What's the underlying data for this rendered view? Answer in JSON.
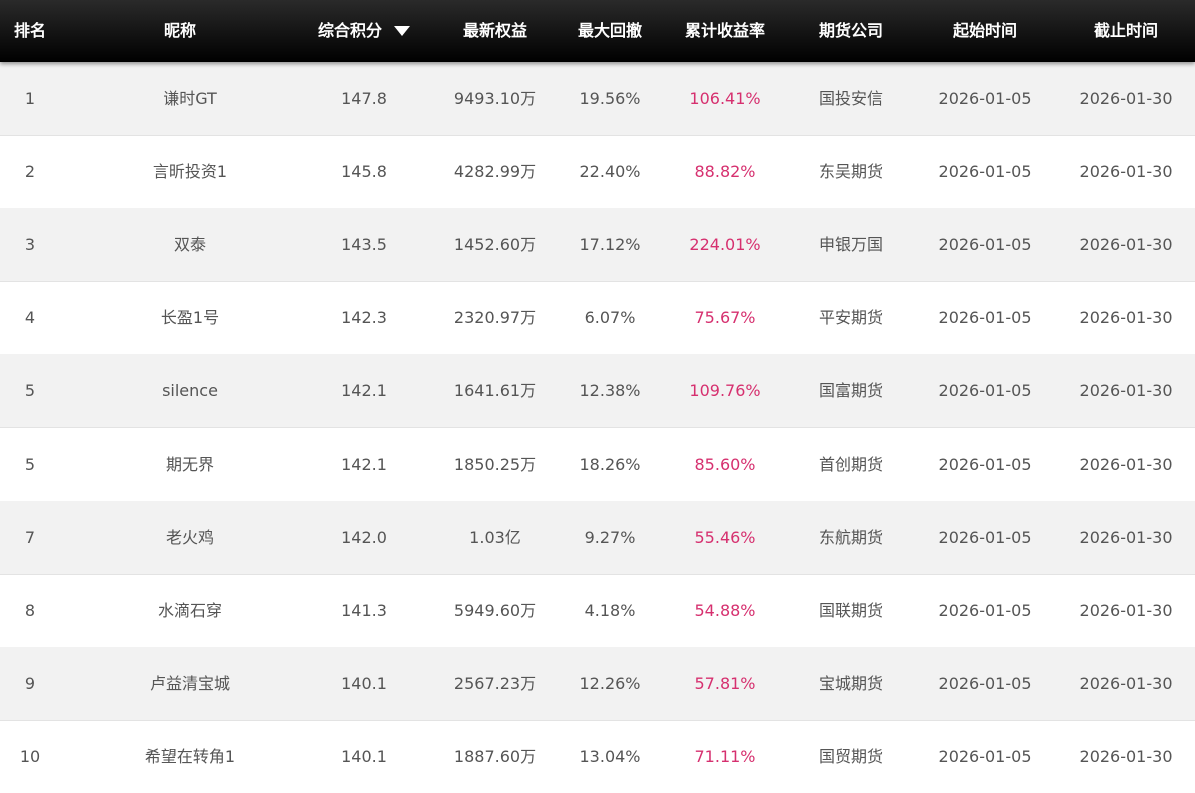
{
  "table": {
    "header": [
      "排名",
      "昵称",
      "综合积分",
      "最新权益",
      "最大回撤",
      "累计收益率",
      "期货公司",
      "起始时间",
      "截止时间"
    ],
    "rows": [
      [
        "1",
        "谦时GT",
        "147.8",
        "9493.10万",
        "19.56%",
        "106.41%",
        "国投安信",
        "2026-01-05",
        "2026-01-30"
      ],
      [
        "2",
        "言昕投资1",
        "145.8",
        "4282.99万",
        "22.40%",
        "88.82%",
        "东吴期货",
        "2026-01-05",
        "2026-01-30"
      ],
      [
        "3",
        "双泰",
        "143.5",
        "1452.60万",
        "17.12%",
        "224.01%",
        "申银万国",
        "2026-01-05",
        "2026-01-30"
      ],
      [
        "4",
        "长盈1号",
        "142.3",
        "2320.97万",
        "6.07%",
        "75.67%",
        "平安期货",
        "2026-01-05",
        "2026-01-30"
      ],
      [
        "5",
        "silence",
        "142.1",
        "1641.61万",
        "12.38%",
        "109.76%",
        "国富期货",
        "2026-01-05",
        "2026-01-30"
      ],
      [
        "5",
        "期无界",
        "142.1",
        "1850.25万",
        "18.26%",
        "85.60%",
        "首创期货",
        "2026-01-05",
        "2026-01-30"
      ],
      [
        "7",
        "老火鸡",
        "142.0",
        "1.03亿",
        "9.27%",
        "55.46%",
        "东航期货",
        "2026-01-05",
        "2026-01-30"
      ],
      [
        "8",
        "水滴石穿",
        "141.3",
        "5949.60万",
        "4.18%",
        "54.88%",
        "国联期货",
        "2026-01-05",
        "2026-01-30"
      ],
      [
        "9",
        "卢益清宝城",
        "140.1",
        "2567.23万",
        "12.26%",
        "57.81%",
        "宝城期货",
        "2026-01-05",
        "2026-01-30"
      ],
      [
        "10",
        "希望在转角1",
        "140.1",
        "1887.60万",
        "13.04%",
        "71.11%",
        "国贸期货",
        "2026-01-05",
        "2026-01-30"
      ]
    ]
  }
}
